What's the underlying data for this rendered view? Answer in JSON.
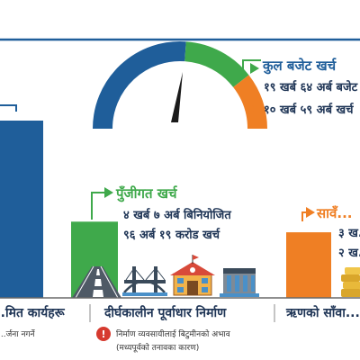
{
  "colors": {
    "blue": "#1f5e9a",
    "green": "#3fa94b",
    "orange": "#ef7f24",
    "navy": "#1f3556",
    "warning": "#d63a2f",
    "divider": "#8b8b8b"
  },
  "gauge": {
    "title": "कुल बजेट खर्च",
    "line1": "१९ खर्ब ६४ अर्ब बजेट",
    "line2": "१० खर्ब ५९ अर्ब खर्च"
  },
  "chart_data": {
    "type": "bar",
    "categories": [
      "...मित कार्यहरू",
      "दीर्घकालीन पूर्वाधार निर्माण",
      "ऋणको साँवा..."
    ],
    "series": [
      {
        "name": "",
        "values": [
          100,
          43,
          37
        ]
      }
    ],
    "bar_colors": [
      "#1f5e9a",
      "#3fa94b",
      "#ef7f24"
    ],
    "ylim": [
      0,
      100
    ],
    "title": "",
    "xlabel": "",
    "ylabel": "",
    "grid": false,
    "legend": "none"
  },
  "left": {
    "sublabel": "...र्जना नगर्ने"
  },
  "middle": {
    "title": "पुँजीगत खर्च",
    "line1": "४ खर्ब ७ अर्ब बिनियोजित",
    "line2": "९६ अर्ब १९ करोड खर्च",
    "warning_line1": "निर्माण व्यवसायीलाई बिटुमीनको अभाव",
    "warning_line2": "(मध्यपूर्वको तनावका कारण)",
    "icons": [
      "road-icon",
      "bridge-icon",
      "school-building-icon",
      "dam-icon"
    ]
  },
  "right": {
    "title": "सावँ...",
    "line1": "३ ख...",
    "line2": "२ ख...",
    "icons": [
      "coin-stack-icon"
    ]
  }
}
